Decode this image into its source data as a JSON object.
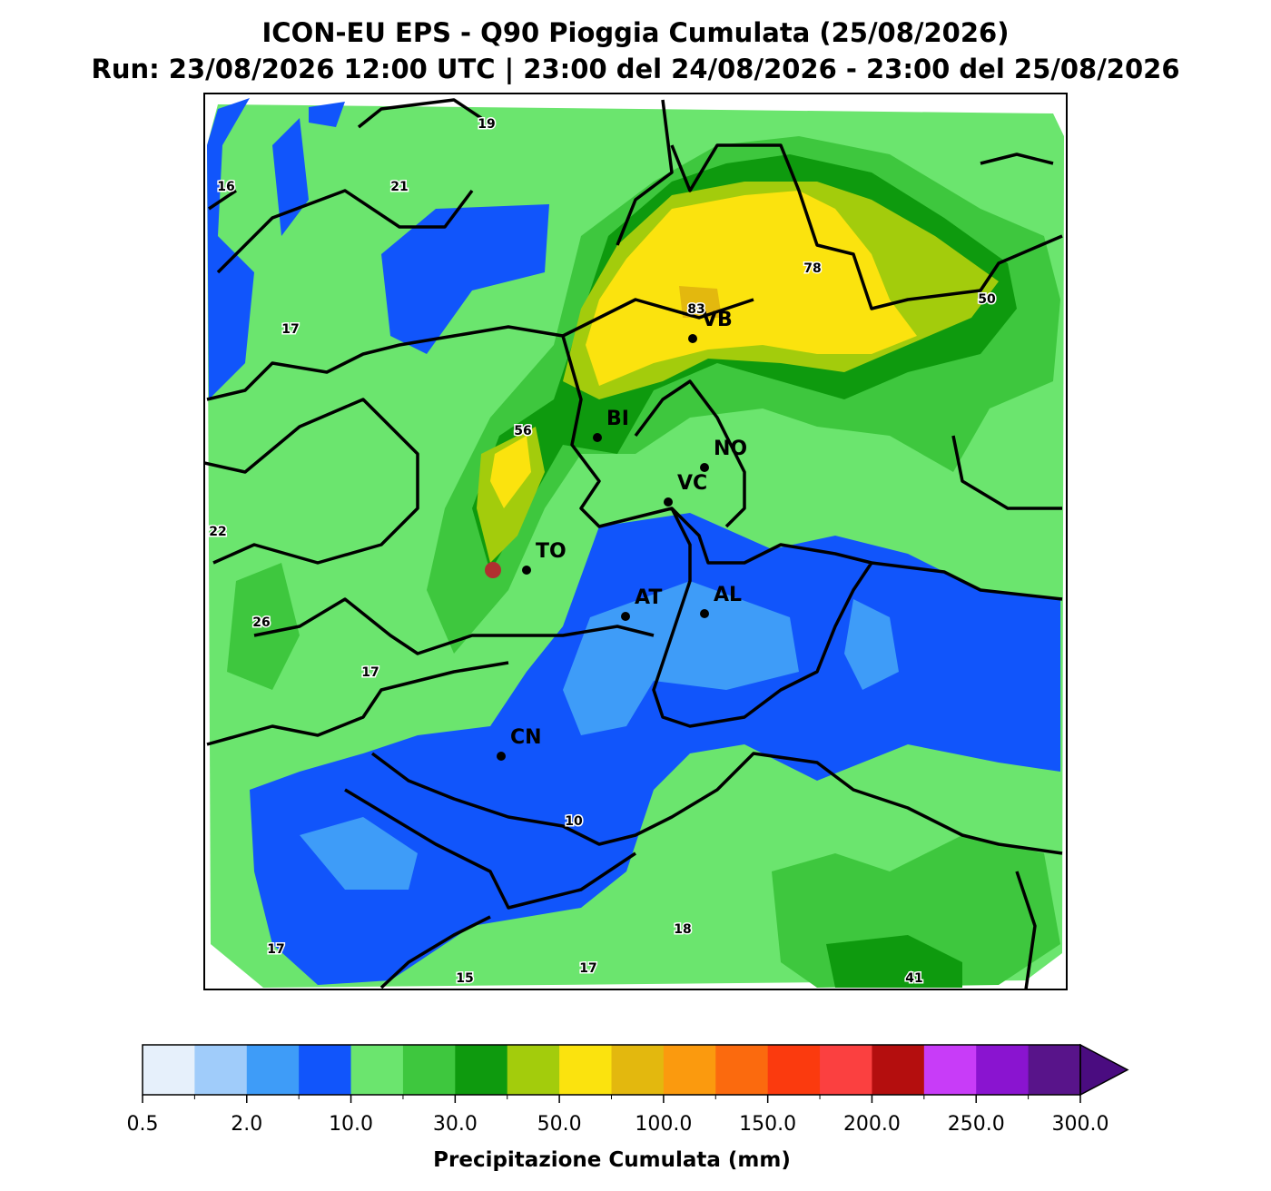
{
  "header": {
    "title": "ICON-EU EPS - Q90 Pioggia Cumulata (25/08/2026)",
    "subtitle": "Run: 23/08/2026 12:00 UTC | 23:00 del 24/08/2026 - 23:00 del 25/08/2026"
  },
  "map": {
    "cities": [
      "VB",
      "BI",
      "NO",
      "VC",
      "TO",
      "AT",
      "AL",
      "CN"
    ],
    "value_labels": [
      "19",
      "16",
      "21",
      "17",
      "78",
      "50",
      "83",
      "56",
      "22",
      "26",
      "17",
      "10",
      "18",
      "17",
      "17",
      "15",
      "41"
    ]
  },
  "colorbar": {
    "label": "Precipitazione Cumulata (mm)",
    "colors": [
      "#e6f0fb",
      "#a0ccfa",
      "#3e9cf8",
      "#1155fb",
      "#6be56e",
      "#3ec73e",
      "#0e9a0e",
      "#a3cc0c",
      "#fbe30e",
      "#e3b80e",
      "#fb9a0e",
      "#fb6a0e",
      "#fb3a0e",
      "#fb4040",
      "#b40e0e",
      "#c83cf8",
      "#8a14d0",
      "#58148a"
    ],
    "over_color": "#4a0c80",
    "ticks": [
      0.5,
      {
        "value": 2,
        "label": "2.0"
      },
      {
        "value": 10,
        "label": "10.0"
      },
      {
        "value": 30,
        "label": "30.0"
      },
      {
        "value": 50,
        "label": "50.0"
      },
      {
        "value": 100,
        "label": "100.0"
      },
      {
        "value": 150,
        "label": "150.0"
      },
      {
        "value": 200,
        "label": "200.0"
      },
      {
        "value": 250,
        "label": "250.0"
      },
      {
        "value": 300,
        "label": "300.0"
      }
    ]
  }
}
